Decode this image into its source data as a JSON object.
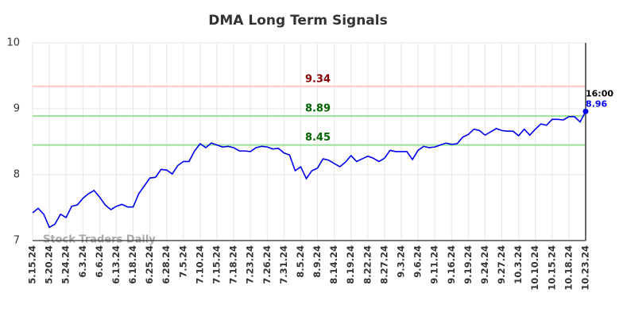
{
  "chart_data": {
    "type": "line",
    "title": "DMA Long Term Signals",
    "categories": [
      "5.15.24",
      null,
      null,
      "5.20.24",
      null,
      null,
      "5.24.24",
      null,
      null,
      "6.3.24",
      null,
      null,
      "6.6.24",
      null,
      null,
      "6.13.24",
      null,
      null,
      "6.18.24",
      null,
      null,
      "6.25.24",
      null,
      null,
      "6.28.24",
      null,
      null,
      "7.5.24",
      null,
      null,
      "7.10.24",
      null,
      null,
      "7.15.24",
      null,
      null,
      "7.18.24",
      null,
      null,
      "7.23.24",
      null,
      null,
      "7.26.24",
      null,
      null,
      "7.31.24",
      null,
      null,
      "8.5.24",
      null,
      null,
      "8.9.24",
      null,
      null,
      "8.14.24",
      null,
      null,
      "8.19.24",
      null,
      null,
      "8.22.24",
      null,
      null,
      "8.27.24",
      null,
      null,
      "9.3.24",
      null,
      null,
      "9.6.24",
      null,
      null,
      "9.11.24",
      null,
      null,
      "9.16.24",
      null,
      null,
      "9.19.24",
      null,
      null,
      "9.24.24",
      null,
      null,
      "9.27.24",
      null,
      null,
      "10.3.24",
      null,
      null,
      "10.10.24",
      null,
      null,
      "10.15.24",
      null,
      null,
      "10.18.24",
      null,
      null,
      "10.23.24"
    ],
    "values": [
      7.42,
      7.49,
      7.4,
      7.2,
      7.25,
      7.4,
      7.35,
      7.52,
      7.54,
      7.64,
      7.71,
      7.76,
      7.66,
      7.54,
      7.47,
      7.52,
      7.55,
      7.51,
      7.51,
      7.71,
      7.83,
      7.95,
      7.96,
      8.08,
      8.07,
      8.01,
      8.14,
      8.2,
      8.2,
      8.36,
      8.47,
      8.41,
      8.48,
      8.45,
      8.42,
      8.43,
      8.41,
      8.36,
      8.36,
      8.35,
      8.41,
      8.43,
      8.42,
      8.39,
      8.4,
      8.33,
      8.3,
      8.06,
      8.12,
      7.94,
      8.06,
      8.1,
      8.24,
      8.22,
      8.17,
      8.12,
      8.19,
      8.29,
      8.2,
      8.24,
      8.28,
      8.25,
      8.2,
      8.25,
      8.37,
      8.35,
      8.35,
      8.35,
      8.23,
      8.37,
      8.43,
      8.41,
      8.42,
      8.45,
      8.48,
      8.46,
      8.47,
      8.57,
      8.61,
      8.69,
      8.67,
      8.6,
      8.65,
      8.7,
      8.67,
      8.66,
      8.66,
      8.59,
      8.69,
      8.6,
      8.69,
      8.77,
      8.75,
      8.84,
      8.84,
      8.83,
      8.88,
      8.88,
      8.8,
      8.96
    ],
    "color": "#0000ee",
    "ylim": [
      7,
      10
    ],
    "yticks": [
      7,
      8,
      9,
      10
    ],
    "grid": true,
    "reference_lines": [
      {
        "value": 9.34,
        "color": "#ffc8c8",
        "label_color": "#8b0000"
      },
      {
        "value": 8.89,
        "color": "#9be29b",
        "label_color": "#006400"
      },
      {
        "value": 8.45,
        "color": "#9be29b",
        "label_color": "#006400"
      }
    ],
    "last_time": "16:00",
    "watermark": "Stock Traders Daily"
  }
}
